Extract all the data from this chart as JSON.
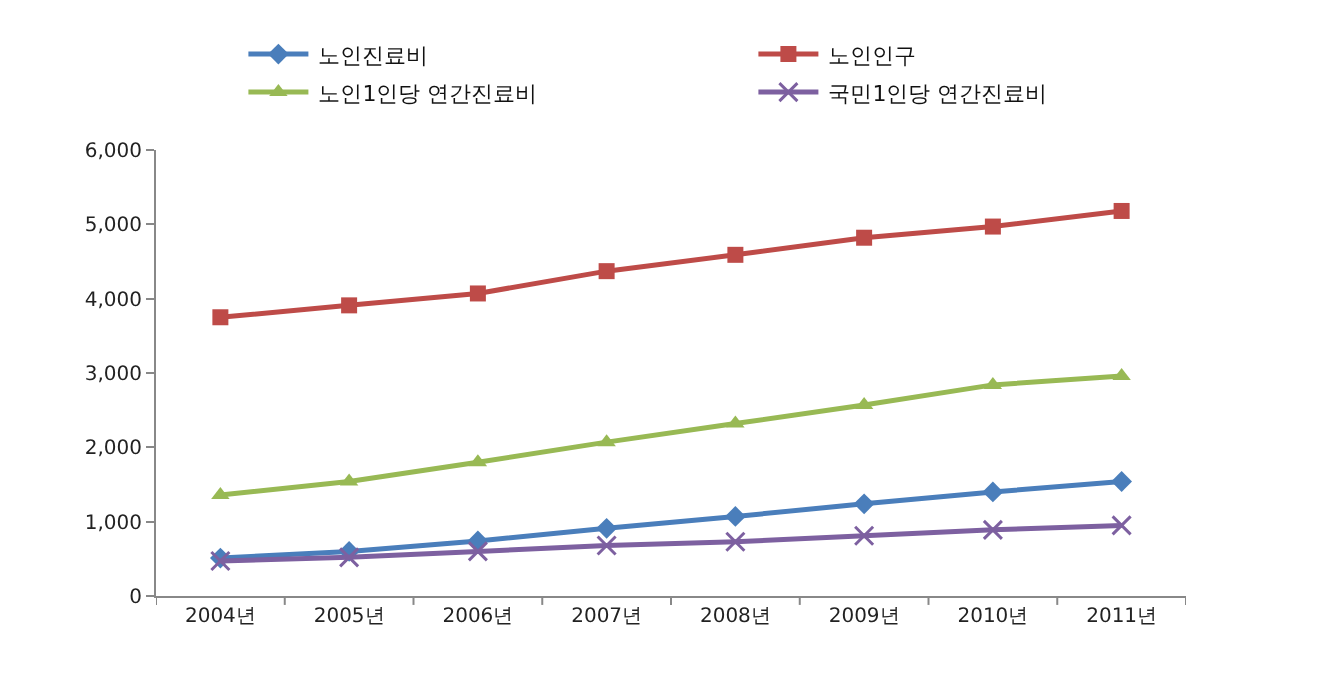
{
  "chart_data": {
    "type": "line",
    "categories": [
      "2004년",
      "2005년",
      "2006년",
      "2007년",
      "2008년",
      "2009년",
      "2010년",
      "2011년"
    ],
    "series": [
      {
        "name": "노인진료비",
        "color": "#4a7ebb",
        "marker": "diamond",
        "values": [
          510,
          600,
          740,
          910,
          1070,
          1240,
          1400,
          1540
        ]
      },
      {
        "name": "노인인구",
        "color": "#be4b48",
        "marker": "square",
        "values": [
          3750,
          3910,
          4070,
          4370,
          4590,
          4820,
          4970,
          5180
        ]
      },
      {
        "name": "노인1인당 연간진료비",
        "color": "#98b954",
        "marker": "triangle",
        "values": [
          1360,
          1540,
          1800,
          2070,
          2320,
          2570,
          2840,
          2960
        ]
      },
      {
        "name": "국민1인당 연간진료비",
        "color": "#7d60a0",
        "marker": "cross",
        "values": [
          470,
          520,
          600,
          680,
          730,
          810,
          890,
          950
        ]
      }
    ],
    "ylim": [
      0,
      6000
    ],
    "yticks": [
      {
        "value": 0,
        "label": "0"
      },
      {
        "value": 1000,
        "label": "1,000"
      },
      {
        "value": 2000,
        "label": "2,000"
      },
      {
        "value": 3000,
        "label": "3,000"
      },
      {
        "value": 4000,
        "label": "4,000"
      },
      {
        "value": 5000,
        "label": "5,000"
      },
      {
        "value": 6000,
        "label": "6,000"
      }
    ],
    "grid": false,
    "legend": "top"
  }
}
